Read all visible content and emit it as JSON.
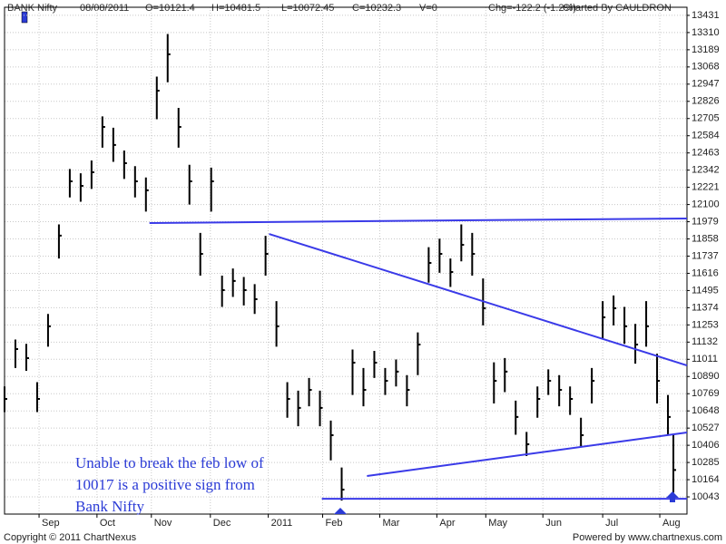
{
  "chart_data": {
    "type": "ohlc",
    "header": [
      "BANK Nifty",
      "08/08/2011",
      "O=10121.4",
      "H=10481.5",
      "L=10072.45",
      "C=10232.3",
      "V=0",
      "Chg=-122.2 (-1.2%)",
      "Charted By CAULDRON"
    ],
    "x": [
      0,
      4,
      8,
      12,
      16,
      20,
      24,
      28,
      32,
      36,
      40,
      44,
      48,
      52,
      56,
      60,
      64,
      68,
      72,
      76,
      80,
      84,
      88,
      92,
      96,
      100,
      104,
      108,
      112,
      116,
      120,
      124,
      128,
      132,
      136,
      140,
      144,
      148,
      152,
      156,
      160,
      164,
      168,
      172,
      176,
      180,
      184,
      188,
      192,
      196,
      200,
      204,
      208,
      212,
      216,
      220,
      224,
      228,
      232,
      236,
      240,
      244,
      246
    ],
    "high": [
      10820,
      11150,
      11120,
      10850,
      11330,
      11960,
      12350,
      12320,
      12410,
      12720,
      12640,
      12480,
      12370,
      12290,
      13000,
      13300,
      12780,
      12380,
      11900,
      12360,
      11600,
      11650,
      11590,
      11540,
      11880,
      11420,
      10850,
      10790,
      10880,
      10790,
      10580,
      10250,
      11080,
      10950,
      11070,
      10950,
      11010,
      10900,
      11200,
      11800,
      11860,
      11720,
      11960,
      11900,
      11580,
      10990,
      11020,
      10720,
      10500,
      10820,
      10940,
      10900,
      10820,
      10600,
      10950,
      11420,
      11460,
      11380,
      11260,
      11420,
      11050,
      10760,
      10481.5
    ],
    "low": [
      10640,
      10950,
      10930,
      10640,
      11100,
      11720,
      12150,
      12120,
      12210,
      12500,
      12400,
      12280,
      12150,
      12050,
      12700,
      12960,
      12500,
      12100,
      11600,
      12050,
      11380,
      11450,
      11390,
      11330,
      11600,
      11100,
      10600,
      10540,
      10680,
      10540,
      10300,
      10017,
      10760,
      10680,
      10880,
      10760,
      10820,
      10680,
      10900,
      11550,
      11620,
      11520,
      11700,
      11600,
      11250,
      10700,
      10780,
      10480,
      10330,
      10600,
      10760,
      10680,
      10620,
      10400,
      10700,
      11150,
      11250,
      11120,
      10980,
      11100,
      10700,
      10480,
      10072.45
    ],
    "close": [
      10732,
      11083,
      11019,
      10732,
      11243,
      11881,
      12263,
      12231,
      12327,
      12646,
      12519,
      12391,
      12263,
      12200,
      12901,
      13157,
      12646,
      12263,
      11753,
      12263,
      11498,
      11562,
      11498,
      11434,
      11753,
      11243,
      10732,
      10669,
      10796,
      10669,
      10477,
      10094,
      10987,
      10796,
      10987,
      10860,
      10924,
      10796,
      11115,
      11689,
      11753,
      11625,
      11817,
      11753,
      11370,
      10860,
      10924,
      10605,
      10413,
      10732,
      10860,
      10796,
      10732,
      10477,
      10860,
      11306,
      11370,
      11243,
      11115,
      11243,
      10860,
      10605,
      10232.3
    ],
    "color": "#000000",
    "xlim": [
      0,
      251
    ],
    "ylim": [
      9922,
      13488
    ],
    "xticks": [
      {
        "value": 12.7,
        "label": "Sep"
      },
      {
        "value": 34,
        "label": "Oct"
      },
      {
        "value": 54,
        "label": "Nov"
      },
      {
        "value": 75.7,
        "label": "Dec"
      },
      {
        "value": 97,
        "label": "2011"
      },
      {
        "value": 117,
        "label": "Feb"
      },
      {
        "value": 138,
        "label": "Mar"
      },
      {
        "value": 159,
        "label": "Apr"
      },
      {
        "value": 177,
        "label": "May"
      },
      {
        "value": 198,
        "label": "Jun"
      },
      {
        "value": 220,
        "label": "Jul"
      },
      {
        "value": 241,
        "label": "Aug"
      }
    ],
    "yticks": [
      13431,
      13310,
      13189,
      13068,
      12947,
      12826,
      12705,
      12584,
      12463,
      12342,
      12221,
      12100,
      11979,
      11858,
      11737,
      11616,
      11495,
      11374,
      11253,
      11132,
      11011,
      10890,
      10769,
      10648,
      10527,
      10406,
      10285,
      10164,
      10043
    ],
    "grid": true,
    "trendlines": [
      {
        "x": [
          53.3,
          251
        ],
        "y": [
          11970,
          12002
        ]
      },
      {
        "x": [
          97.3,
          251
        ],
        "y": [
          11893,
          10968
        ]
      },
      {
        "x": [
          133.3,
          251
        ],
        "y": [
          10190,
          10496
        ]
      },
      {
        "x": [
          116.7,
          251
        ],
        "y": [
          10030,
          10030
        ]
      }
    ],
    "trendline_color": "#3a3ae8",
    "annotation": [
      "Unable to break the feb low of",
      "10017 is a positive sign from",
      "Bank Nifty"
    ],
    "footer": [
      "Copyright © 2011 ChartNexus",
      "Powered by www.chartnexus.com"
    ]
  }
}
